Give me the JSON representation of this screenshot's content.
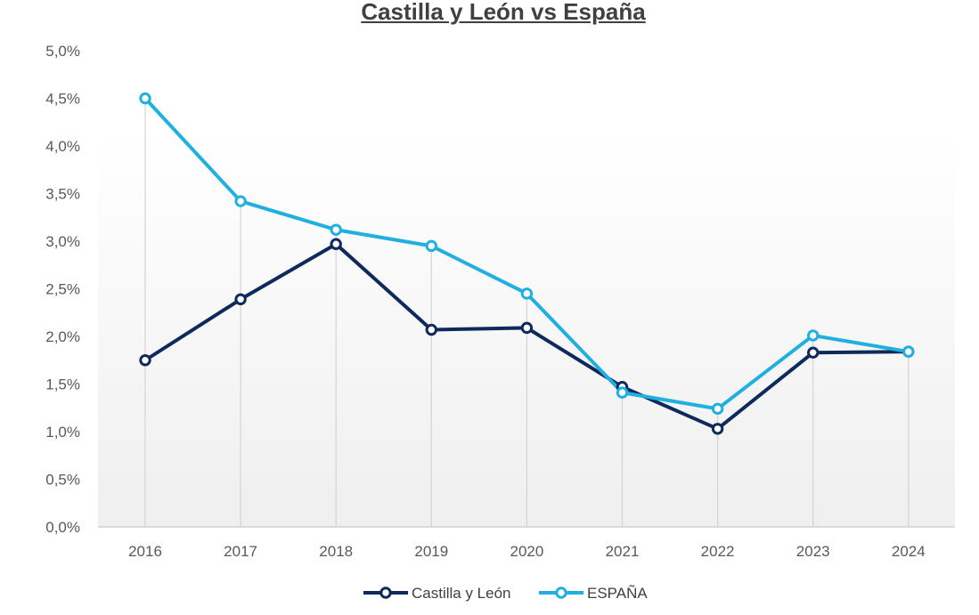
{
  "chart_data": {
    "type": "line",
    "title": "Castilla y León vs España",
    "xlabel": "",
    "ylabel": "",
    "categories": [
      "2016",
      "2017",
      "2018",
      "2019",
      "2020",
      "2021",
      "2022",
      "2023",
      "2024"
    ],
    "ylim": [
      0,
      5.0
    ],
    "ytick_step": 0.5,
    "ytick_labels": [
      "0,0%",
      "0,5%",
      "1,0%",
      "1,5%",
      "2,0%",
      "2,5%",
      "3,0%",
      "3,5%",
      "4,0%",
      "4,5%",
      "5,0%"
    ],
    "grid": "vertical drop lines at each category",
    "legend_position": "bottom",
    "series": [
      {
        "name": "Castilla y León",
        "color": "#0e2a5c",
        "values": [
          1.75,
          2.39,
          2.97,
          2.07,
          2.09,
          1.47,
          1.03,
          1.83,
          1.84
        ]
      },
      {
        "name": "ESPAÑA",
        "color": "#1fb0e0",
        "values": [
          4.5,
          3.42,
          3.12,
          2.95,
          2.45,
          1.41,
          1.24,
          2.01,
          1.84
        ]
      }
    ]
  }
}
